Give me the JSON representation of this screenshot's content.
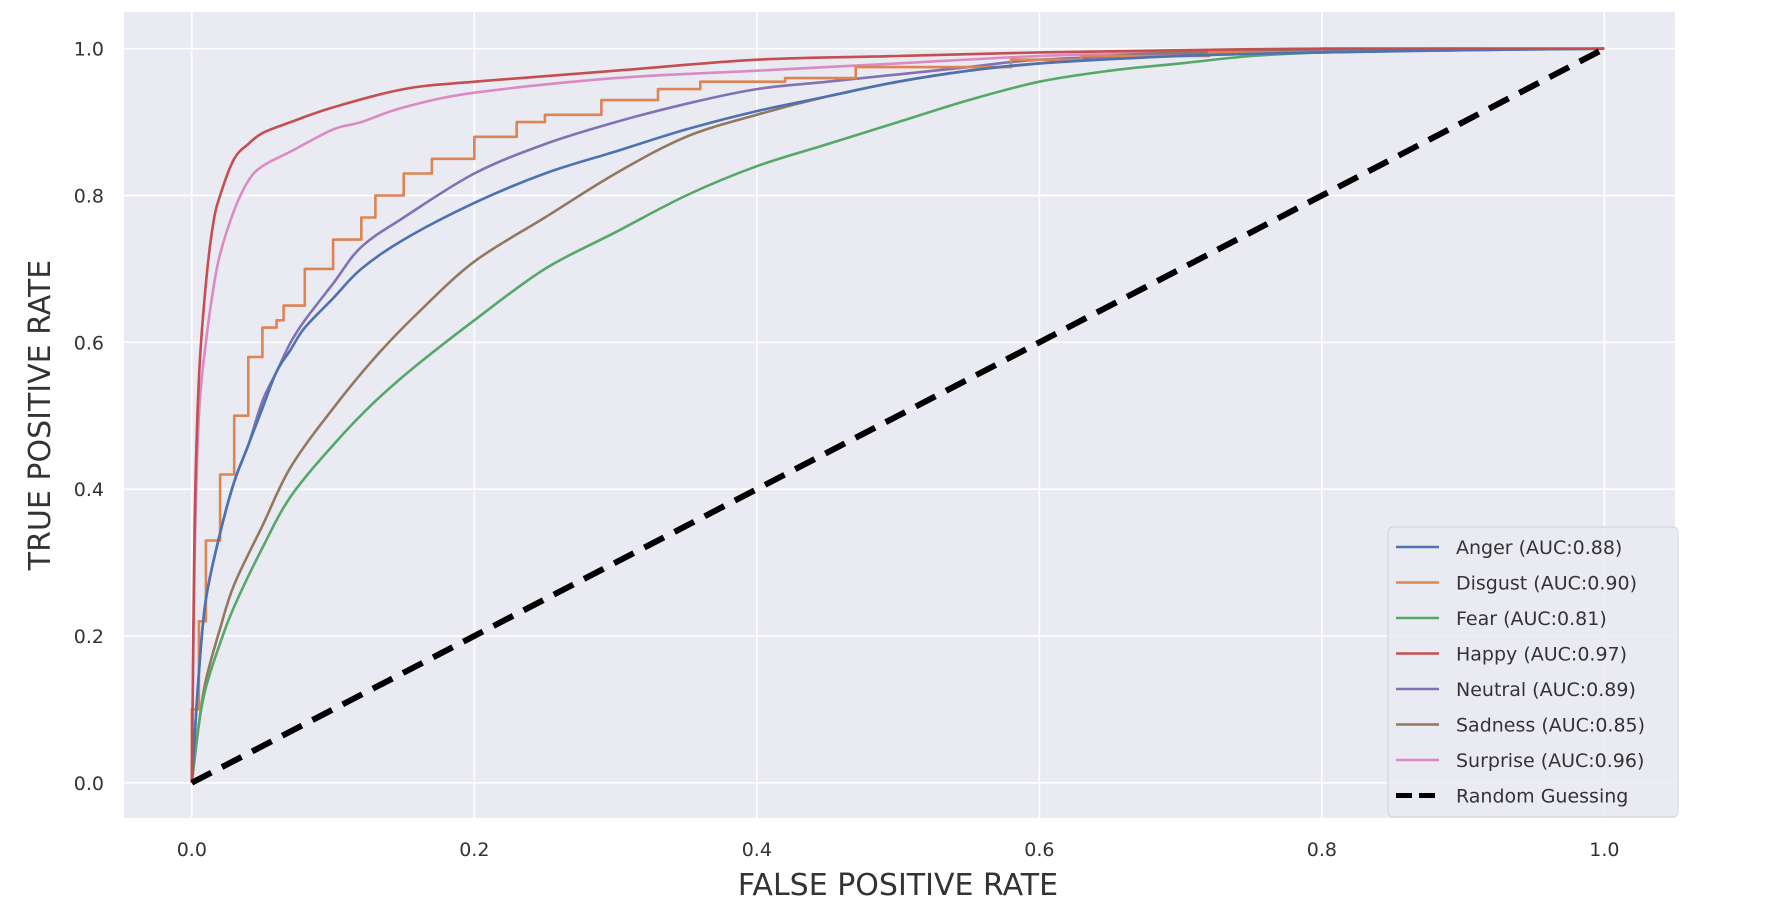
{
  "chart_data": {
    "type": "line",
    "title": "",
    "xlabel": "FALSE POSITIVE RATE",
    "ylabel": "TRUE POSITIVE RATE",
    "xlim": [
      -0.048,
      1.05
    ],
    "ylim": [
      -0.048,
      1.05
    ],
    "grid": true,
    "legend_position": "lower-right",
    "xticks": [
      0.0,
      0.2,
      0.4,
      0.6,
      0.8,
      1.0
    ],
    "xtick_labels": [
      "0.0",
      "0.2",
      "0.4",
      "0.6",
      "0.8",
      "1.0"
    ],
    "yticks": [
      0.0,
      0.2,
      0.4,
      0.6,
      0.8,
      1.0
    ],
    "ytick_labels": [
      "0.0",
      "0.2",
      "0.4",
      "0.6",
      "0.8",
      "1.0"
    ],
    "series": [
      {
        "name": "Anger (AUC:0.88)",
        "color": "#4c72b0",
        "style": "smooth",
        "x": [
          0,
          0.005,
          0.01,
          0.02,
          0.03,
          0.04,
          0.05,
          0.06,
          0.07,
          0.08,
          0.1,
          0.12,
          0.15,
          0.2,
          0.25,
          0.3,
          0.35,
          0.4,
          0.45,
          0.5,
          0.55,
          0.6,
          0.7,
          0.8,
          0.9,
          1.0
        ],
        "y": [
          0,
          0.15,
          0.25,
          0.34,
          0.41,
          0.46,
          0.51,
          0.56,
          0.59,
          0.62,
          0.66,
          0.7,
          0.74,
          0.79,
          0.83,
          0.86,
          0.89,
          0.915,
          0.935,
          0.955,
          0.97,
          0.98,
          0.99,
          0.995,
          0.998,
          1.0
        ]
      },
      {
        "name": "Disgust (AUC:0.90)",
        "color": "#dd8452",
        "style": "step",
        "x": [
          0,
          0.005,
          0.01,
          0.02,
          0.03,
          0.04,
          0.05,
          0.06,
          0.065,
          0.08,
          0.1,
          0.12,
          0.13,
          0.15,
          0.17,
          0.2,
          0.23,
          0.25,
          0.29,
          0.33,
          0.36,
          0.42,
          0.47,
          0.58,
          0.63,
          0.72,
          0.8,
          0.85,
          1.0
        ],
        "y": [
          0,
          0.1,
          0.22,
          0.33,
          0.42,
          0.5,
          0.58,
          0.62,
          0.63,
          0.65,
          0.7,
          0.74,
          0.77,
          0.8,
          0.83,
          0.85,
          0.88,
          0.9,
          0.91,
          0.93,
          0.945,
          0.955,
          0.96,
          0.975,
          0.985,
          0.99,
          0.995,
          1.0,
          1.0
        ]
      },
      {
        "name": "Fear (AUC:0.81)",
        "color": "#55a868",
        "style": "smooth",
        "x": [
          0,
          0.005,
          0.01,
          0.02,
          0.03,
          0.05,
          0.07,
          0.1,
          0.13,
          0.16,
          0.2,
          0.25,
          0.3,
          0.35,
          0.4,
          0.45,
          0.5,
          0.55,
          0.6,
          0.65,
          0.7,
          0.75,
          0.8,
          0.9,
          1.0
        ],
        "y": [
          0,
          0.08,
          0.13,
          0.19,
          0.24,
          0.32,
          0.39,
          0.46,
          0.52,
          0.57,
          0.63,
          0.7,
          0.75,
          0.8,
          0.84,
          0.87,
          0.9,
          0.93,
          0.955,
          0.97,
          0.98,
          0.99,
          0.995,
          0.998,
          1.0
        ]
      },
      {
        "name": "Happy (AUC:0.97)",
        "color": "#c44e52",
        "style": "smooth",
        "x": [
          0,
          0.002,
          0.005,
          0.01,
          0.015,
          0.02,
          0.03,
          0.04,
          0.05,
          0.07,
          0.1,
          0.15,
          0.2,
          0.3,
          0.4,
          0.5,
          0.6,
          0.7,
          0.8,
          1.0
        ],
        "y": [
          0,
          0.35,
          0.55,
          0.68,
          0.76,
          0.8,
          0.85,
          0.87,
          0.885,
          0.9,
          0.92,
          0.945,
          0.955,
          0.97,
          0.985,
          0.99,
          0.995,
          0.998,
          1.0,
          1.0
        ]
      },
      {
        "name": "Neutral (AUC:0.89)",
        "color": "#8172b3",
        "style": "smooth",
        "x": [
          0,
          0.005,
          0.01,
          0.02,
          0.03,
          0.04,
          0.05,
          0.06,
          0.07,
          0.08,
          0.1,
          0.12,
          0.15,
          0.2,
          0.25,
          0.3,
          0.35,
          0.4,
          0.45,
          0.5,
          0.55,
          0.6,
          0.7,
          0.8,
          0.9,
          1.0
        ],
        "y": [
          0,
          0.15,
          0.25,
          0.34,
          0.41,
          0.46,
          0.52,
          0.56,
          0.6,
          0.63,
          0.68,
          0.73,
          0.77,
          0.83,
          0.87,
          0.9,
          0.925,
          0.945,
          0.955,
          0.965,
          0.975,
          0.985,
          0.992,
          0.996,
          0.999,
          1.0
        ]
      },
      {
        "name": "Sadness (AUC:0.85)",
        "color": "#937860",
        "style": "smooth",
        "x": [
          0,
          0.005,
          0.01,
          0.02,
          0.03,
          0.05,
          0.07,
          0.1,
          0.13,
          0.16,
          0.2,
          0.25,
          0.3,
          0.35,
          0.4,
          0.45,
          0.5,
          0.55,
          0.6,
          0.65,
          0.7,
          0.8,
          0.9,
          1.0
        ],
        "y": [
          0,
          0.08,
          0.14,
          0.21,
          0.27,
          0.35,
          0.43,
          0.51,
          0.58,
          0.64,
          0.71,
          0.77,
          0.83,
          0.88,
          0.91,
          0.935,
          0.955,
          0.97,
          0.98,
          0.99,
          0.995,
          0.998,
          0.999,
          1.0
        ]
      },
      {
        "name": "Surprise (AUC:0.96)",
        "color": "#da8bc3",
        "style": "smooth",
        "x": [
          0,
          0.002,
          0.005,
          0.01,
          0.015,
          0.02,
          0.03,
          0.04,
          0.05,
          0.07,
          0.1,
          0.12,
          0.15,
          0.2,
          0.3,
          0.4,
          0.5,
          0.6,
          0.7,
          0.8,
          1.0
        ],
        "y": [
          0,
          0.3,
          0.5,
          0.6,
          0.67,
          0.72,
          0.78,
          0.82,
          0.84,
          0.86,
          0.89,
          0.9,
          0.92,
          0.94,
          0.96,
          0.97,
          0.98,
          0.99,
          0.995,
          1.0,
          1.0
        ]
      },
      {
        "name": "Random Guessing",
        "color": "#000000",
        "style": "dashed",
        "x": [
          0,
          1
        ],
        "y": [
          0,
          1
        ]
      }
    ]
  }
}
